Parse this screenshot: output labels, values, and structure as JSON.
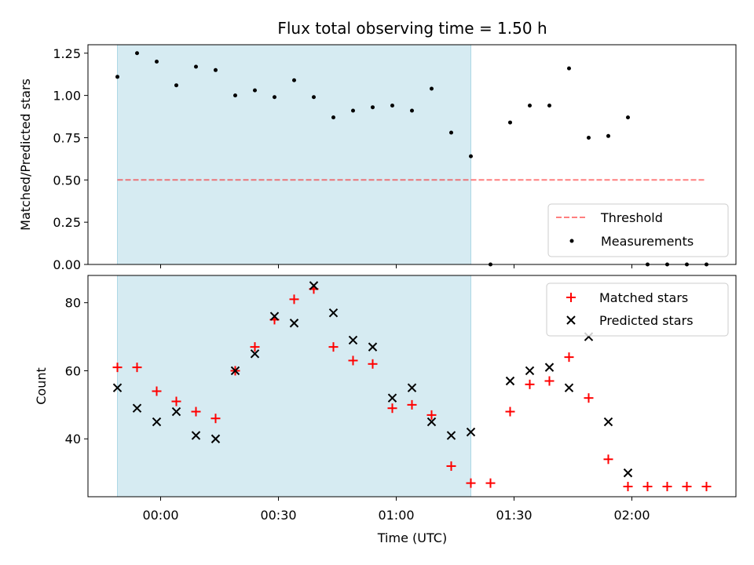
{
  "chart_data": {
    "title": "Flux total observing time = 1.50 h",
    "xlabel": "Time (UTC)",
    "x_tick_labels": [
      "00:00",
      "00:30",
      "01:00",
      "01:30",
      "02:00"
    ],
    "x_tick_minutes": [
      0,
      30,
      60,
      90,
      120
    ],
    "xlim_minutes": [
      -18.5,
      146.5
    ],
    "observing_window_minutes": [
      -11,
      79
    ],
    "colors": {
      "window": "#add8e6",
      "threshold": "#ff0000",
      "measurements": "#000000",
      "matched": "#ff0000",
      "predicted": "#000000"
    },
    "top": {
      "type": "scatter",
      "ylabel": "Matched/Predicted stars",
      "ylim": [
        0,
        1.3
      ],
      "y_ticks": [
        0.0,
        0.25,
        0.5,
        0.75,
        1.0,
        1.25
      ],
      "y_tick_labels": [
        "0.00",
        "0.25",
        "0.50",
        "0.75",
        "1.00",
        "1.25"
      ],
      "threshold": {
        "name": "Threshold",
        "y": 0.5,
        "x_range_minutes": [
          -11,
          139
        ]
      },
      "measurements": {
        "name": "Measurements",
        "x_minutes": [
          -11,
          -6,
          -1,
          4,
          9,
          14,
          19,
          24,
          29,
          34,
          39,
          44,
          49,
          54,
          59,
          64,
          69,
          74,
          79,
          84,
          89,
          94,
          99,
          104,
          109,
          114,
          119,
          124,
          129,
          134,
          139
        ],
        "y": [
          1.11,
          1.25,
          1.2,
          1.06,
          1.17,
          1.15,
          1.0,
          1.03,
          0.99,
          1.09,
          0.99,
          0.87,
          0.91,
          0.93,
          0.94,
          0.91,
          1.04,
          0.78,
          0.64,
          0.0,
          0.84,
          0.94,
          0.94,
          1.16,
          0.75,
          0.76,
          0.87,
          0.0,
          0.0,
          0.0,
          0.0
        ]
      },
      "legend": [
        "Threshold",
        "Measurements"
      ],
      "legend_position": "lower-right"
    },
    "bottom": {
      "type": "scatter",
      "ylabel": "Count",
      "ylim": [
        23,
        88
      ],
      "y_ticks": [
        40,
        60,
        80
      ],
      "y_tick_labels": [
        "40",
        "60",
        "80"
      ],
      "series": [
        {
          "name": "Matched stars",
          "marker": "plus",
          "x_minutes": [
            -11,
            -6,
            -1,
            4,
            9,
            14,
            19,
            24,
            29,
            34,
            39,
            44,
            49,
            54,
            59,
            64,
            69,
            74,
            79,
            84,
            89,
            94,
            99,
            104,
            109,
            114,
            119,
            124,
            129,
            134,
            139
          ],
          "y": [
            61,
            61,
            54,
            51,
            48,
            46,
            60,
            67,
            75,
            81,
            84,
            67,
            63,
            62,
            49,
            50,
            47,
            32,
            27,
            27,
            48,
            56,
            57,
            64,
            52,
            34,
            26,
            26,
            26,
            26,
            26
          ]
        },
        {
          "name": "Predicted stars",
          "marker": "x",
          "x_minutes": [
            -11,
            -6,
            -1,
            4,
            9,
            14,
            19,
            24,
            29,
            34,
            39,
            44,
            49,
            54,
            59,
            64,
            69,
            74,
            79,
            89,
            94,
            99,
            104,
            109,
            114,
            119
          ],
          "y": [
            55,
            49,
            45,
            48,
            41,
            40,
            60,
            65,
            76,
            74,
            85,
            77,
            69,
            67,
            52,
            55,
            45,
            41,
            42,
            57,
            60,
            61,
            55,
            70,
            45,
            30
          ]
        }
      ],
      "legend": [
        "Matched stars",
        "Predicted stars"
      ],
      "legend_position": "upper-right"
    }
  }
}
